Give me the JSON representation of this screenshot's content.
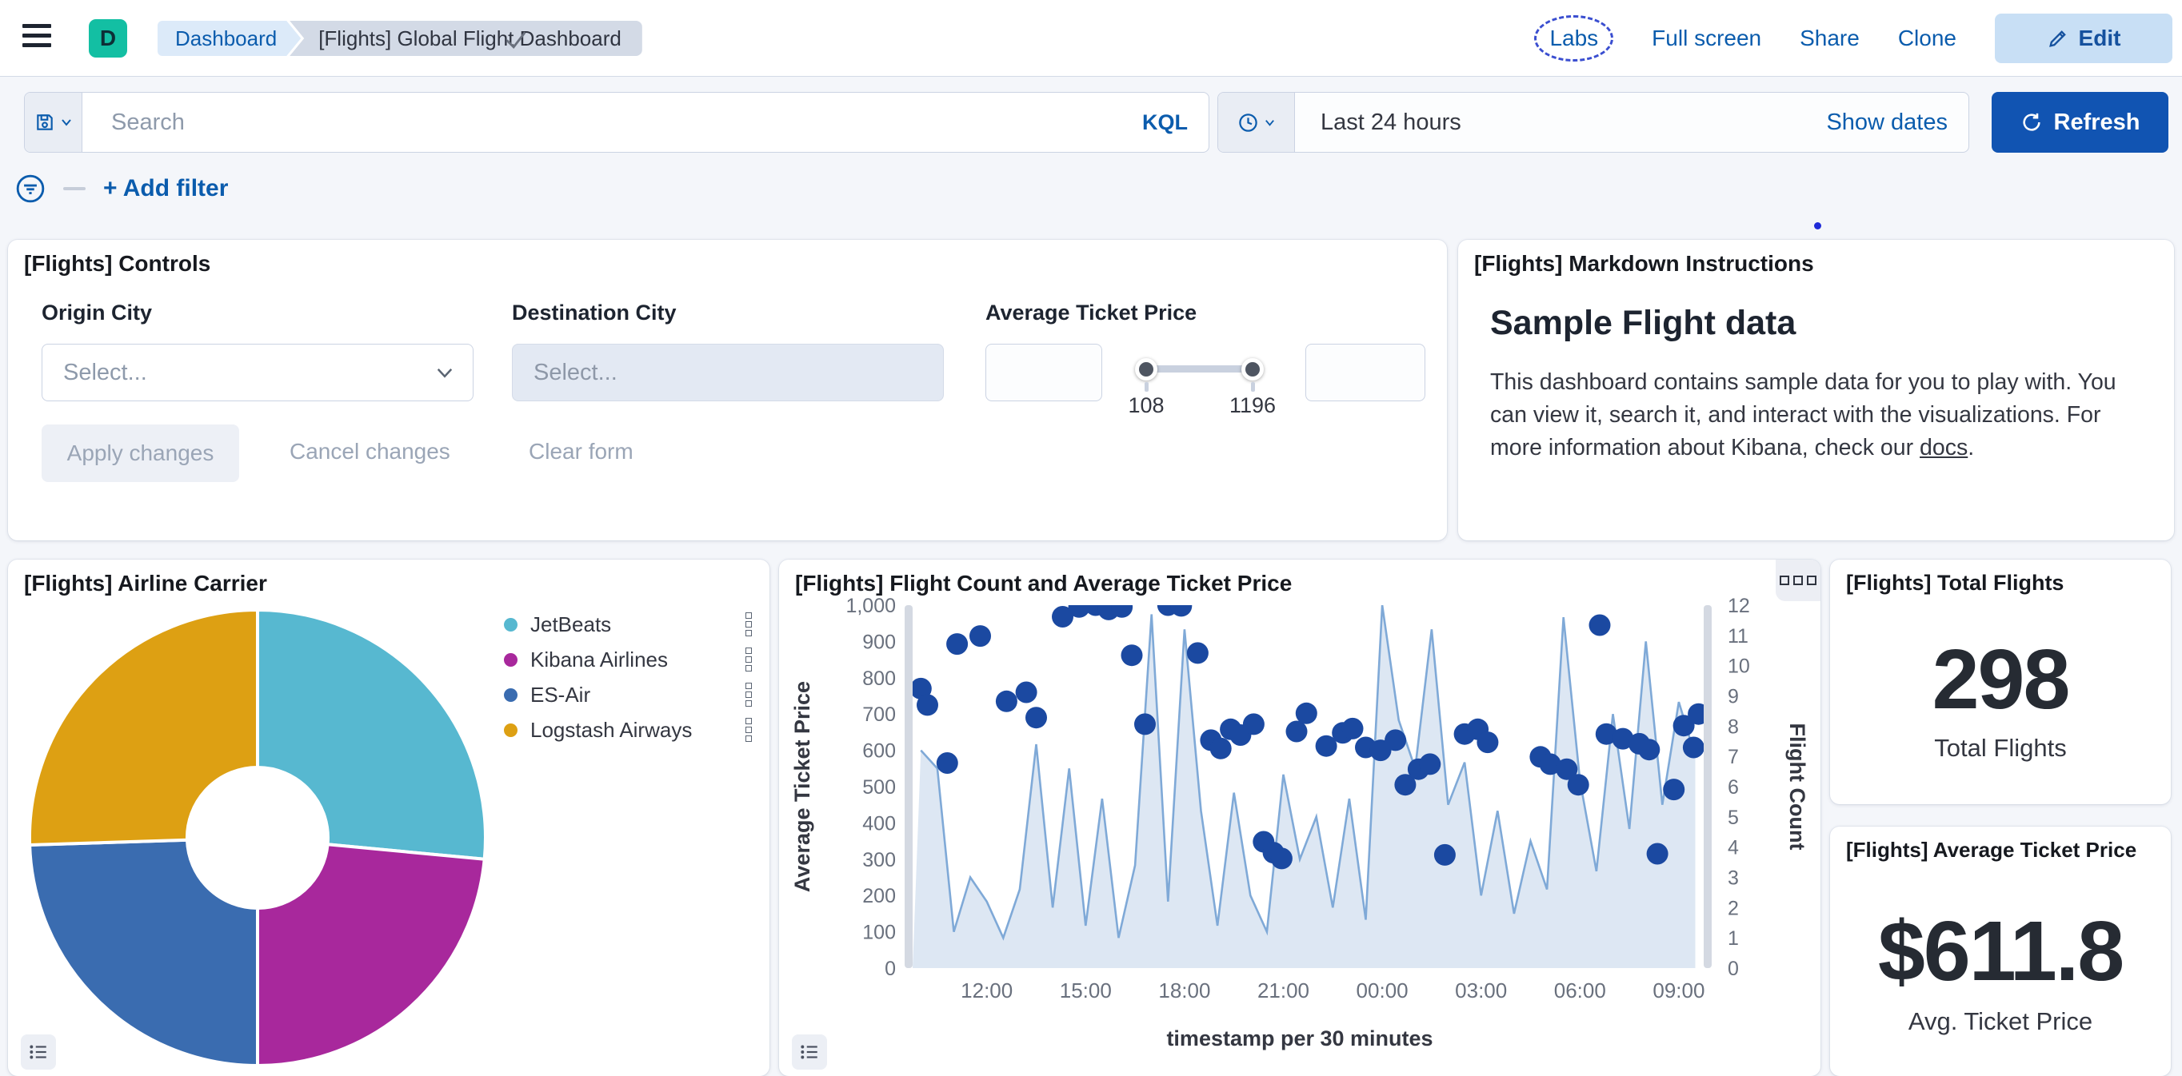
{
  "header": {
    "logo_letter": "D",
    "breadcrumbs": [
      "Dashboard",
      "[Flights] Global Flight Dashboard"
    ],
    "actions": [
      "Labs",
      "Full screen",
      "Share",
      "Clone"
    ],
    "edit_label": "Edit"
  },
  "query_bar": {
    "search_placeholder": "Search",
    "language_badge": "KQL",
    "time_value": "Last 24 hours",
    "show_dates_label": "Show dates",
    "refresh_label": "Refresh",
    "add_filter_label": "+ Add filter"
  },
  "controls": {
    "title": "[Flights] Controls",
    "origin_label": "Origin City",
    "origin_placeholder": "Select...",
    "destination_label": "Destination City",
    "destination_placeholder": "Select...",
    "price_label": "Average Ticket Price",
    "price_min_label": "108",
    "price_max_label": "1196",
    "apply_label": "Apply changes",
    "cancel_label": "Cancel changes",
    "clear_label": "Clear form"
  },
  "markdown": {
    "title": "[Flights] Markdown Instructions",
    "heading": "Sample Flight data",
    "body_start": "This dashboard contains sample data for you to play with. You can view it, search it, and interact with the visualizations. For more information about Kibana, check our ",
    "link_text": "docs",
    "body_end": "."
  },
  "stats": {
    "total_flights": {
      "title": "[Flights] Total Flights",
      "value": "298",
      "label": "Total Flights"
    },
    "avg_price": {
      "title": "[Flights] Average Ticket Price",
      "value": "$611.8",
      "label": "Avg. Ticket Price"
    }
  },
  "colors": {
    "link_blue": "#0b5cad",
    "refresh_button": "#1154b2",
    "edit_button_bg": "#c8dff5",
    "logo_green": "#13bfa3",
    "scatter_dot": "#1b49a1",
    "area_line": "#7fa9d7",
    "area_fill": "#d9e4f2"
  },
  "chart_data": [
    {
      "type": "pie",
      "title": "[Flights] Airline Carrier",
      "donut": true,
      "legend_position": "right",
      "start_angle_deg": 0,
      "clockwise": true,
      "slices": [
        {
          "label": "JetBeats",
          "value": 26.5,
          "color": "#57b8d0"
        },
        {
          "label": "Kibana Airlines",
          "value": 23.5,
          "color": "#a8289c"
        },
        {
          "label": "ES-Air",
          "value": 24.5,
          "color": "#3a6cb0"
        },
        {
          "label": "Logstash Airways",
          "value": 25.5,
          "color": "#dda013"
        }
      ]
    },
    {
      "type": "area",
      "title": "[Flights] Flight Count and Average Ticket Price",
      "x_axis_title": "timestamp per 30 minutes",
      "x_tick_labels": [
        "12:00",
        "15:00",
        "18:00",
        "21:00",
        "00:00",
        "03:00",
        "06:00",
        "09:00"
      ],
      "x_tick_indices": [
        3,
        9,
        15,
        21,
        27,
        33,
        39,
        45
      ],
      "x_bucket_count": 48,
      "grid": false,
      "left_axis": {
        "title": "Average Ticket Price",
        "min": 0,
        "max": 1000,
        "ticks": [
          "1,000",
          "900",
          "800",
          "700",
          "600",
          "500",
          "400",
          "300",
          "200",
          "100",
          "0"
        ]
      },
      "right_axis": {
        "title": "Flight Count",
        "min": 0,
        "max": 12,
        "ticks": [
          "12",
          "11",
          "10",
          "9",
          "8",
          "7",
          "6",
          "5",
          "4",
          "3",
          "2",
          "1",
          "0"
        ]
      },
      "series": [
        {
          "name": "Flight Count",
          "type": "area",
          "axis": "right",
          "color": "#7fa9d7",
          "fill": "#d9e4f2",
          "values": [
            7.2,
            6.6,
            1.2,
            3.0,
            2.2,
            1.0,
            2.6,
            7.4,
            2.0,
            6.6,
            1.4,
            5.6,
            1.0,
            3.4,
            11.7,
            2.2,
            11.2,
            5.2,
            1.4,
            5.8,
            2.4,
            1.2,
            6.4,
            3.6,
            5.0,
            2.0,
            5.6,
            1.6,
            12.0,
            8.2,
            6.6,
            11.2,
            5.4,
            6.8,
            2.4,
            5.2,
            1.8,
            4.2,
            2.6,
            11.6,
            6.2,
            3.2,
            8.4,
            4.6,
            10.8,
            5.4,
            8.8,
            7.0
          ]
        },
        {
          "name": "Average Ticket Price",
          "type": "scatter",
          "axis": "left",
          "color": "#1b49a1",
          "points": [
            [
              0,
              770
            ],
            [
              0.4,
              725
            ],
            [
              1.6,
              565
            ],
            [
              2.2,
              893
            ],
            [
              3.6,
              915
            ],
            [
              5.2,
              735
            ],
            [
              6.4,
              760
            ],
            [
              7.0,
              690
            ],
            [
              8.6,
              968
            ],
            [
              9.6,
              995
            ],
            [
              10.6,
              1000
            ],
            [
              11.4,
              988
            ],
            [
              12.2,
              995
            ],
            [
              12.8,
              862
            ],
            [
              13.6,
              672
            ],
            [
              15.0,
              1000
            ],
            [
              15.8,
              998
            ],
            [
              16.8,
              868
            ],
            [
              17.6,
              628
            ],
            [
              18.2,
              605
            ],
            [
              18.8,
              658
            ],
            [
              19.4,
              642
            ],
            [
              20.2,
              672
            ],
            [
              20.8,
              348
            ],
            [
              21.4,
              318
            ],
            [
              21.9,
              302
            ],
            [
              22.8,
              652
            ],
            [
              23.4,
              702
            ],
            [
              24.6,
              612
            ],
            [
              25.6,
              648
            ],
            [
              26.2,
              660
            ],
            [
              27.0,
              608
            ],
            [
              27.9,
              600
            ],
            [
              28.8,
              628
            ],
            [
              29.4,
              505
            ],
            [
              30.2,
              548
            ],
            [
              30.9,
              562
            ],
            [
              31.8,
              312
            ],
            [
              33.0,
              645
            ],
            [
              33.8,
              658
            ],
            [
              34.4,
              622
            ],
            [
              37.6,
              582
            ],
            [
              38.2,
              562
            ],
            [
              39.2,
              548
            ],
            [
              39.9,
              505
            ],
            [
              41.2,
              945
            ],
            [
              41.6,
              645
            ],
            [
              42.6,
              632
            ],
            [
              43.6,
              618
            ],
            [
              44.2,
              602
            ],
            [
              44.7,
              315
            ],
            [
              45.7,
              492
            ],
            [
              46.3,
              668
            ],
            [
              46.9,
              608
            ],
            [
              47.2,
              700
            ]
          ]
        }
      ]
    }
  ]
}
